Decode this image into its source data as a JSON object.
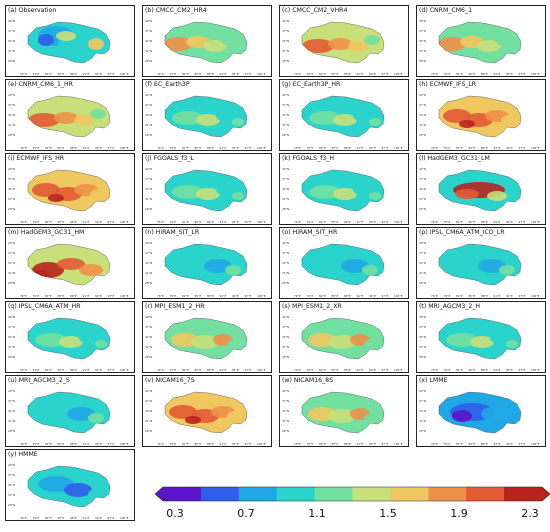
{
  "panels": [
    {
      "label": "(a) Observation",
      "pattern": "obs"
    },
    {
      "label": "(b) CMCC_CM2_HR4",
      "pattern": "warm1"
    },
    {
      "label": "(c) CMCC_CM2_VHR4",
      "pattern": "warm2"
    },
    {
      "label": "(d) CNRM_CM6_1",
      "pattern": "warm1"
    },
    {
      "label": "(e) CNRM_CM6_1_HR",
      "pattern": "warm2"
    },
    {
      "label": "(f) EC_Earth3P",
      "pattern": "mid"
    },
    {
      "label": "(g) EC_Earth3P_HR",
      "pattern": "mid"
    },
    {
      "label": "(h) ECMWF_IFS_LR",
      "pattern": "hot"
    },
    {
      "label": "(i) ECMWF_IFS_HR",
      "pattern": "hot"
    },
    {
      "label": "(j) FGOALS_f3_L",
      "pattern": "mid"
    },
    {
      "label": "(k) FGOALS_f3_H",
      "pattern": "mid"
    },
    {
      "label": "(l) HadGEM3_GC31_LM",
      "pattern": "hadlm"
    },
    {
      "label": "(m) HadGEM3_GC31_HM",
      "pattern": "hadhm"
    },
    {
      "label": "(n) HiRAM_SIT_LR",
      "pattern": "cool"
    },
    {
      "label": "(o) HiRAM_SIT_HR",
      "pattern": "cool"
    },
    {
      "label": "(p) IPSL_CM6A_ATM_ICO_LR",
      "pattern": "cool"
    },
    {
      "label": "(q) IPSL_CM6A_ATM_HR",
      "pattern": "mid"
    },
    {
      "label": "(r) MPI_ESM1_2_HR",
      "pattern": "warm3"
    },
    {
      "label": "(s) MPI_ESM1_2_XR",
      "pattern": "warm3"
    },
    {
      "label": "(t) MRI_AGCM3_2_H",
      "pattern": "mid"
    },
    {
      "label": "(u) MRI_AGCM3_2_S",
      "pattern": "cool"
    },
    {
      "label": "(v) NICAM16_7S",
      "pattern": "hot"
    },
    {
      "label": "(w) NICAM16_8S",
      "pattern": "warm3"
    },
    {
      "label": "(x) LMME",
      "pattern": "blue"
    },
    {
      "label": "(y) HMME",
      "pattern": "blue2"
    }
  ],
  "lat_ticks": [
    "40°N",
    "37°N",
    "34°N",
    "31°N",
    "28°N"
  ],
  "lon_ticks": [
    "76°E",
    "79°E",
    "82°E",
    "85°E",
    "88°E",
    "91°E",
    "94°E",
    "97°E",
    "100°E"
  ],
  "colorbar": {
    "labels": [
      "0.3",
      "0.7",
      "1.1",
      "1.5",
      "1.9",
      "2.3"
    ],
    "colors": [
      "#5b14c9",
      "#2f5ee8",
      "#20a8e6",
      "#2ad3cc",
      "#72e0a0",
      "#c8e07a",
      "#f0c860",
      "#ef9048",
      "#e25b34",
      "#b8231d"
    ]
  }
}
